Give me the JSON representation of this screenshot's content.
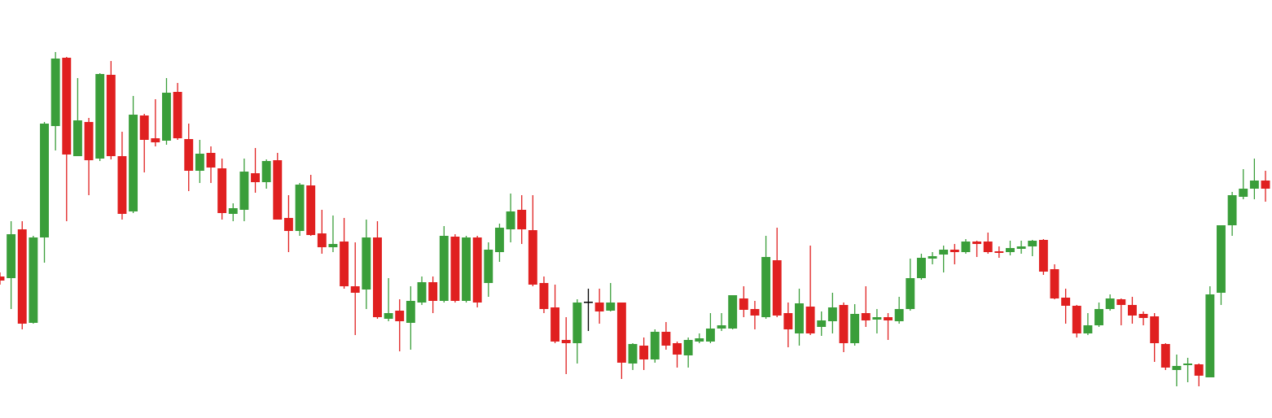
{
  "chart_data": {
    "type": "candlestick",
    "ylim": [
      0,
      514
    ],
    "colors": {
      "up": "#3a9e3a",
      "down": "#e02020",
      "flat": "#000000"
    },
    "open": [
      174,
      172,
      232,
      117,
      222,
      359,
      443,
      322,
      364,
      319,
      422,
      322,
      254,
      372,
      344,
      341,
      401,
      343,
      304,
      326,
      307,
      251,
      256,
      301,
      290,
      317,
      246,
      230,
      286,
      227,
      210,
      217,
      162,
      158,
      222,
      122,
      132,
      117,
      142,
      167,
      144,
      223,
      144,
      222,
      166,
      204,
      232,
      256,
      231,
      166,
      136,
      96,
      92,
      143,
      142,
      132,
      142,
      67,
      89,
      72,
      106,
      92,
      77,
      94,
      94,
      110,
      110,
      147,
      134,
      124,
      194,
      129,
      104,
      137,
      112,
      119,
      139,
      92,
      129,
      121,
      124,
      119,
      134,
      172,
      196,
      201,
      207,
      204,
      217,
      217,
      205,
      204,
      208,
      211,
      219,
      183,
      148,
      138,
      104,
      114,
      134,
      146,
      139,
      128,
      125,
      91,
      59,
      65,
      66,
      50,
      154,
      237,
      272,
      282,
      292
    ],
    "high": [
      179,
      242,
      242,
      224,
      364,
      450,
      444,
      418,
      369,
      424,
      439,
      352,
      396,
      374,
      392,
      418,
      412,
      362,
      342,
      334,
      319,
      264,
      319,
      332,
      318,
      326,
      274,
      289,
      299,
      256,
      249,
      246,
      216,
      244,
      242,
      172,
      146,
      162,
      174,
      174,
      236,
      226,
      224,
      224,
      216,
      239,
      276,
      274,
      274,
      174,
      164,
      124,
      146,
      159,
      159,
      166,
      142,
      92,
      99,
      109,
      118,
      94,
      99,
      104,
      129,
      129,
      151,
      162,
      144,
      224,
      234,
      142,
      159,
      212,
      131,
      154,
      142,
      140,
      162,
      134,
      129,
      149,
      196,
      202,
      204,
      212,
      214,
      220,
      218,
      228,
      211,
      218,
      218,
      219,
      220,
      189,
      159,
      139,
      129,
      142,
      152,
      147,
      149,
      131,
      129,
      92,
      78,
      74,
      67,
      162,
      237,
      278,
      306,
      319,
      304
    ],
    "low": [
      164,
      134,
      109,
      116,
      191,
      329,
      242,
      322,
      274,
      316,
      318,
      244,
      252,
      302,
      334,
      336,
      342,
      279,
      289,
      289,
      244,
      242,
      242,
      277,
      282,
      244,
      204,
      224,
      224,
      202,
      204,
      159,
      102,
      134,
      122,
      119,
      82,
      84,
      139,
      129,
      142,
      142,
      142,
      136,
      149,
      192,
      216,
      214,
      162,
      129,
      92,
      54,
      67,
      107,
      116,
      131,
      48,
      59,
      59,
      68,
      84,
      62,
      62,
      92,
      92,
      107,
      109,
      124,
      109,
      122,
      124,
      87,
      89,
      102,
      101,
      104,
      81,
      89,
      112,
      104,
      96,
      116,
      132,
      170,
      189,
      179,
      189,
      202,
      198,
      202,
      197,
      200,
      202,
      199,
      176,
      146,
      116,
      99,
      102,
      112,
      132,
      114,
      116,
      114,
      69,
      59,
      39,
      44,
      39,
      50,
      139,
      224,
      269,
      269,
      266
    ],
    "close": [
      169,
      226,
      116,
      222,
      362,
      442,
      324,
      366,
      317,
      423,
      322,
      251,
      373,
      342,
      339,
      400,
      344,
      304,
      325,
      308,
      252,
      258,
      303,
      290,
      316,
      244,
      230,
      287,
      225,
      210,
      214,
      162,
      154,
      222,
      124,
      129,
      119,
      144,
      167,
      144,
      224,
      144,
      222,
      142,
      207,
      234,
      254,
      232,
      164,
      134,
      94,
      92,
      142,
      143,
      131,
      142,
      68,
      91,
      72,
      106,
      89,
      78,
      96,
      98,
      110,
      114,
      151,
      133,
      126,
      198,
      126,
      109,
      141,
      104,
      120,
      136,
      92,
      128,
      120,
      124,
      120,
      134,
      172,
      197,
      199,
      207,
      204,
      217,
      214,
      204,
      203,
      209,
      211,
      218,
      180,
      147,
      138,
      104,
      114,
      134,
      147,
      139,
      126,
      123,
      92,
      62,
      64,
      67,
      52,
      152,
      237,
      274,
      282,
      292,
      282
    ]
  }
}
